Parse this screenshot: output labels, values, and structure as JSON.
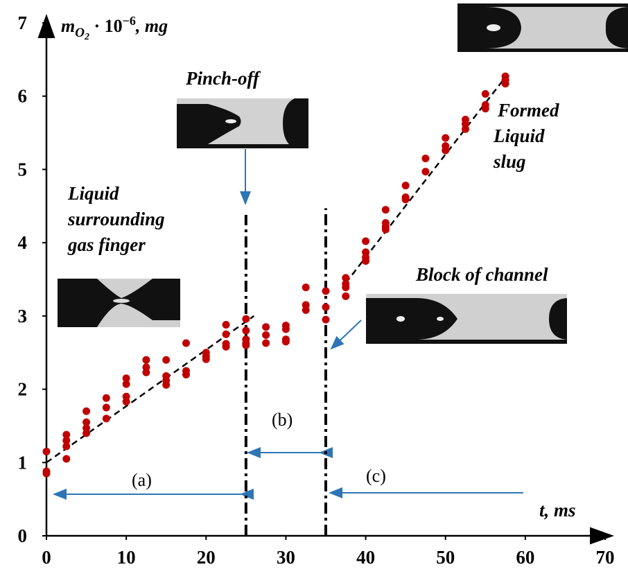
{
  "chart_data": {
    "type": "scatter",
    "x_label": "t, ms",
    "y_label": {
      "base": "m",
      "sub": "O",
      "subsub": "2",
      "mid": " · 10",
      "sup": "−6",
      "unit": ", mg"
    },
    "x": [
      0,
      0,
      0,
      2.5,
      2.5,
      2.5,
      2.5,
      5,
      5,
      5,
      5,
      7.5,
      7.5,
      7.5,
      10,
      10,
      10,
      10,
      12.5,
      12.5,
      12.5,
      15,
      15,
      15,
      15,
      17.5,
      17.5,
      17.5,
      20,
      20,
      20,
      22.5,
      22.5,
      22.5,
      22.5,
      25,
      25,
      25,
      25,
      25,
      27.5,
      27.5,
      27.5,
      30,
      30,
      30,
      30,
      32.5,
      32.5,
      32.5,
      35,
      35,
      35,
      37.5,
      37.5,
      37.5,
      37.5,
      40,
      40,
      40,
      40,
      42.5,
      42.5,
      42.5,
      42.5,
      45,
      45,
      45,
      47.5,
      47.5,
      50,
      50,
      50,
      52.5,
      52.5,
      52.5,
      55,
      55,
      55,
      57.5,
      57.5,
      57.5
    ],
    "y": [
      1.15,
      0.88,
      0.85,
      1.38,
      1.3,
      1.22,
      1.05,
      1.7,
      1.55,
      1.47,
      1.4,
      1.88,
      1.75,
      1.6,
      2.15,
      2.07,
      1.9,
      1.83,
      2.4,
      2.3,
      2.23,
      2.4,
      2.18,
      2.12,
      2.06,
      2.63,
      2.25,
      2.2,
      2.5,
      2.45,
      2.41,
      2.88,
      2.75,
      2.62,
      2.58,
      2.96,
      2.8,
      2.68,
      2.63,
      2.6,
      2.85,
      2.74,
      2.63,
      2.87,
      2.82,
      2.68,
      2.65,
      3.39,
      3.15,
      3.08,
      3.34,
      3.12,
      2.95,
      3.52,
      3.44,
      3.39,
      3.27,
      4.02,
      3.87,
      3.8,
      3.75,
      4.45,
      4.27,
      4.22,
      4.18,
      4.78,
      4.62,
      4.59,
      5.15,
      4.97,
      5.43,
      5.32,
      5.26,
      5.68,
      5.62,
      5.55,
      6.03,
      5.88,
      5.83,
      6.27,
      6.22,
      6.17
    ],
    "color": "#c00000",
    "trendlines": [
      {
        "x": [
          0,
          26
        ],
        "y": [
          1.0,
          3.0
        ]
      },
      {
        "x": [
          37.5,
          57.8
        ],
        "y": [
          3.45,
          6.3
        ]
      }
    ],
    "vlines": [
      {
        "x": 25,
        "y": [
          0,
          4.38
        ]
      },
      {
        "x": 35,
        "y": [
          0,
          4.47
        ]
      }
    ],
    "xlim": [
      0,
      70
    ],
    "xticks": [
      0,
      10,
      20,
      30,
      40,
      50,
      60,
      70
    ],
    "ylim": [
      0,
      7
    ],
    "yticks": [
      0,
      1,
      2,
      3,
      4,
      5,
      6,
      7
    ],
    "annotations": {
      "pinch_off": "Pinch-off",
      "liquid_surrounding": [
        "Liquid",
        "surrounding",
        "gas finger"
      ],
      "block": "Block of channel",
      "formed": [
        "Formed",
        "Liquid",
        "slug"
      ],
      "a": "(a)",
      "b": "(b)",
      "c": "(c)"
    }
  }
}
